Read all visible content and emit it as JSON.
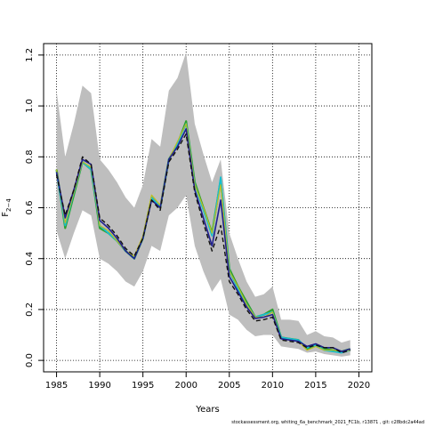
{
  "chart_data": {
    "type": "line",
    "xlabel": "Years",
    "ylabel_main": "F",
    "ylabel_sub": "2−4",
    "xlim": [
      1983.5,
      2021.5
    ],
    "ylim": [
      -0.045,
      1.245
    ],
    "x_ticks": [
      1985,
      1990,
      1995,
      2000,
      2005,
      2010,
      2015,
      2020
    ],
    "y_ticks": [
      0.0,
      0.2,
      0.4,
      0.6,
      0.8,
      1.0,
      1.2
    ],
    "y_tick_labels": [
      "0.0",
      "0.2",
      "0.4",
      "0.6",
      "0.8",
      "1.0",
      "1.2"
    ],
    "grid": true,
    "band_color": "#bebebe",
    "years": [
      1985,
      1986,
      1987,
      1988,
      1989,
      1990,
      1991,
      1992,
      1993,
      1994,
      1995,
      1996,
      1997,
      1998,
      1999,
      2000,
      2001,
      2002,
      2003,
      2004,
      2005,
      2006,
      2007,
      2008,
      2009,
      2010,
      2011,
      2012,
      2013,
      2014,
      2015,
      2016,
      2017,
      2018,
      2019
    ],
    "band_upper": [
      1.06,
      0.8,
      0.93,
      1.08,
      1.05,
      0.79,
      0.75,
      0.7,
      0.64,
      0.6,
      0.69,
      0.87,
      0.84,
      1.06,
      1.11,
      1.21,
      0.93,
      0.81,
      0.7,
      0.79,
      0.5,
      0.4,
      0.31,
      0.25,
      0.26,
      0.29,
      0.16,
      0.16,
      0.155,
      0.1,
      0.115,
      0.095,
      0.09,
      0.07,
      0.08
    ],
    "band_lower": [
      0.51,
      0.4,
      0.5,
      0.59,
      0.57,
      0.4,
      0.38,
      0.35,
      0.31,
      0.29,
      0.35,
      0.45,
      0.43,
      0.57,
      0.6,
      0.65,
      0.45,
      0.35,
      0.27,
      0.32,
      0.18,
      0.16,
      0.12,
      0.095,
      0.1,
      0.1,
      0.055,
      0.05,
      0.045,
      0.03,
      0.035,
      0.025,
      0.02,
      0.015,
      0.02
    ],
    "series": [
      {
        "color": "#2ca02c",
        "width": 2.2,
        "values": [
          0.75,
          0.52,
          0.65,
          0.78,
          0.75,
          0.52,
          0.5,
          0.47,
          0.43,
          0.4,
          0.48,
          0.64,
          0.6,
          0.79,
          0.85,
          0.94,
          0.7,
          0.6,
          0.5,
          0.71,
          0.36,
          0.29,
          0.23,
          0.17,
          0.18,
          0.2,
          0.09,
          0.085,
          0.08,
          0.045,
          0.06,
          0.045,
          0.04,
          0.035,
          0.045
        ]
      },
      {
        "color": "#17becf",
        "width": 1.8,
        "values": [
          0.74,
          0.53,
          0.66,
          0.78,
          0.75,
          0.53,
          0.5,
          0.47,
          0.43,
          0.4,
          0.48,
          0.64,
          0.6,
          0.79,
          0.85,
          0.93,
          0.69,
          0.59,
          0.49,
          0.72,
          0.35,
          0.28,
          0.22,
          0.17,
          0.18,
          0.19,
          0.09,
          0.085,
          0.08,
          0.05,
          0.06,
          0.04,
          0.035,
          0.03,
          0.04
        ]
      },
      {
        "color": "#bcbd22",
        "width": 1.2,
        "values": [
          0.75,
          0.54,
          0.66,
          0.78,
          0.76,
          0.53,
          0.51,
          0.47,
          0.43,
          0.41,
          0.49,
          0.65,
          0.61,
          0.79,
          0.86,
          0.93,
          0.69,
          0.6,
          0.5,
          0.69,
          0.35,
          0.29,
          0.22,
          0.17,
          0.17,
          0.19,
          0.085,
          0.08,
          0.075,
          0.04,
          0.055,
          0.04,
          0.04,
          0.035,
          0.04
        ]
      },
      {
        "color": "#1f1f8f",
        "width": 1.6,
        "values": [
          0.74,
          0.56,
          0.67,
          0.79,
          0.77,
          0.55,
          0.52,
          0.48,
          0.43,
          0.4,
          0.48,
          0.63,
          0.6,
          0.79,
          0.84,
          0.91,
          0.67,
          0.56,
          0.45,
          0.63,
          0.33,
          0.27,
          0.21,
          0.165,
          0.17,
          0.18,
          0.085,
          0.08,
          0.075,
          0.055,
          0.065,
          0.05,
          0.05,
          0.035,
          0.045
        ]
      },
      {
        "color": "#111111",
        "width": 1.4,
        "dash": "5,3",
        "values": [
          0.73,
          0.57,
          0.67,
          0.8,
          0.77,
          0.56,
          0.53,
          0.49,
          0.44,
          0.41,
          0.48,
          0.63,
          0.59,
          0.78,
          0.83,
          0.89,
          0.66,
          0.54,
          0.43,
          0.53,
          0.31,
          0.26,
          0.2,
          0.155,
          0.16,
          0.17,
          0.08,
          0.075,
          0.07,
          0.05,
          0.06,
          0.05,
          0.05,
          0.03,
          0.04
        ]
      }
    ]
  },
  "footer_text": "stockassessment.org, whiting_6a_benchmark_2021_FC1b, r13871 , git: c28bdc2a44ad"
}
